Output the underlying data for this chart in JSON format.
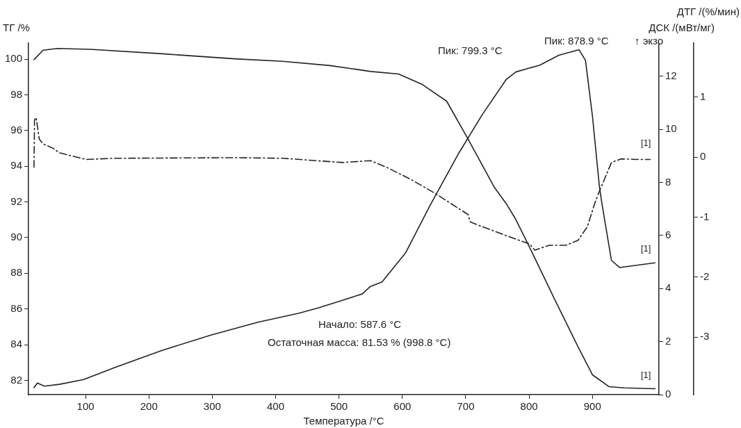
{
  "chart_data": {
    "type": "line",
    "xlabel": "Температура /°C",
    "ylabel": "ТГ /%",
    "y2label": "ДСК /(мВт/мг)",
    "y3label": "ДТГ /(%/мин)",
    "xlim": [
      10,
      1005
    ],
    "xticks": [
      100,
      200,
      300,
      400,
      500,
      600,
      700,
      800,
      900
    ],
    "ylim": [
      81.2,
      100.9
    ],
    "yticks": [
      82,
      84,
      86,
      88,
      90,
      92,
      94,
      96,
      98,
      100
    ],
    "y2lim": [
      0,
      13.25
    ],
    "y2ticks": [
      0,
      2,
      4,
      6,
      8,
      10,
      12
    ],
    "y3lim": [
      -3.96,
      1.9
    ],
    "y3ticks": [
      -3,
      -2,
      -1,
      0,
      1
    ],
    "grid": false,
    "legend": false,
    "marker": "none",
    "series": [
      {
        "color": "#222222",
        "line_style": "solid",
        "x": [
          18.6,
          33,
          55.5,
          108,
          221,
          335,
          411,
          486,
          550,
          594,
          632,
          670,
          704,
          745,
          764,
          779,
          802,
          840,
          877,
          900,
          926,
          950,
          998.8
        ],
        "values": [
          99.97,
          100.5,
          100.6,
          100.55,
          100.3,
          100.02,
          99.88,
          99.64,
          99.31,
          99.17,
          98.57,
          97.64,
          95.5,
          92.83,
          91.9,
          91.02,
          89.37,
          86.57,
          83.9,
          82.31,
          81.65,
          81.58,
          81.53
        ]
      },
      {
        "color": "#222222",
        "line_style": "solid",
        "axis": "y2",
        "x": [
          18.6,
          24,
          35,
          59,
          97,
          146,
          221,
          297,
          372,
          437,
          466,
          501,
          537,
          549,
          568,
          605,
          643,
          689,
          726,
          764,
          779,
          799.3,
          817,
          847,
          878.9,
          889,
          900,
          911,
          915,
          923,
          930,
          943,
          998.8
        ],
        "values": [
          0.26,
          0.44,
          0.32,
          0.39,
          0.57,
          1.02,
          1.67,
          2.24,
          2.73,
          3.07,
          3.26,
          3.52,
          3.8,
          4.07,
          4.25,
          5.34,
          7.1,
          9.1,
          10.55,
          11.88,
          12.16,
          12.3,
          12.42,
          12.79,
          13.0,
          12.6,
          10.5,
          7.84,
          7.2,
          6.05,
          5.06,
          4.79,
          4.97
        ]
      },
      {
        "color": "#222222",
        "line_style": "dashed",
        "axis": "y3",
        "x": [
          18.6,
          19.5,
          22,
          27,
          33,
          48,
          59,
          101,
          146,
          335,
          411,
          505,
          550,
          575,
          613,
          651,
          704,
          707,
          726,
          764,
          801,
          809,
          832,
          858,
          877,
          892,
          904,
          911,
          930,
          945,
          972,
          991
        ],
        "values": [
          -0.17,
          0.62,
          0.66,
          0.3,
          0.22,
          0.15,
          0.07,
          -0.04,
          -0.02,
          -0.01,
          -0.02,
          -0.09,
          -0.06,
          -0.17,
          -0.37,
          -0.6,
          -0.96,
          -1.08,
          -1.16,
          -1.31,
          -1.45,
          -1.55,
          -1.47,
          -1.47,
          -1.39,
          -1.16,
          -0.76,
          -0.57,
          -0.09,
          -0.03,
          -0.04,
          -0.04
        ]
      }
    ],
    "annotations": [
      "Пик: 799.3 °C",
      "Пик: 878.9 °C",
      "Начало: 587.6 °C",
      "Остаточная масса: 81.53 % (998.8 °C)",
      "↑ экзо",
      "[1]",
      "[1]",
      "[1]"
    ]
  }
}
